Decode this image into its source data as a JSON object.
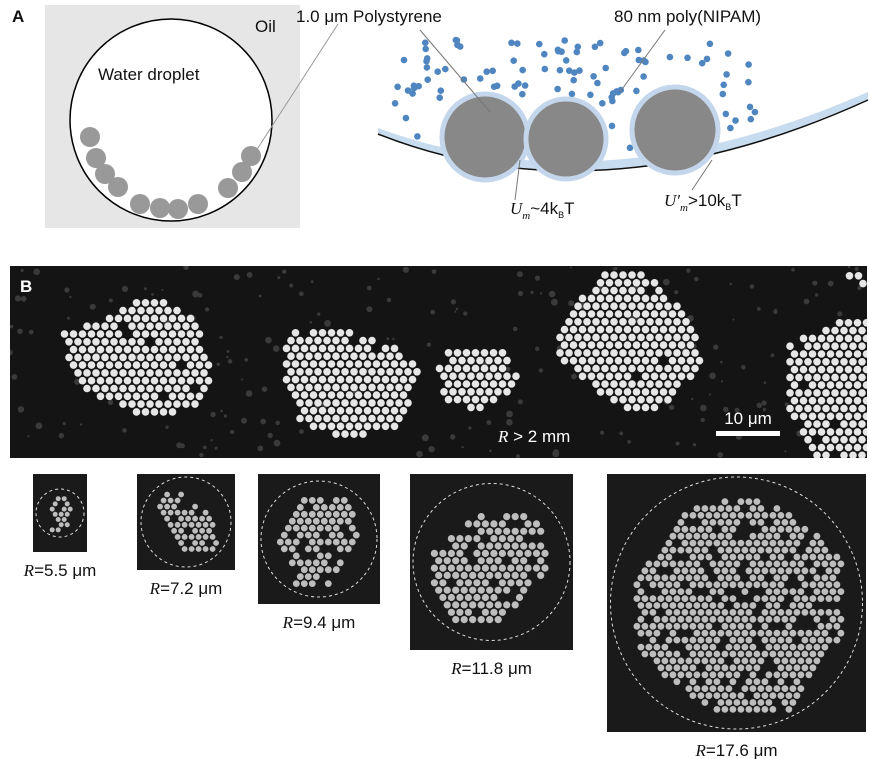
{
  "panel_a": {
    "label": "A",
    "oil": "Oil",
    "droplet": "Water droplet",
    "polystyrene": "1.0 μm Polystyrene",
    "nipam": "80 nm poly(NIPAM)",
    "potential_weak": {
      "symbol": "U",
      "sub": "m",
      "relation": "~4k",
      "sub2": "B",
      "end": "T"
    },
    "potential_strong": {
      "symbol": "U′",
      "sub": "m",
      "relation": ">10k",
      "sub2": "B",
      "end": "T"
    }
  },
  "panel_b": {
    "label": "B",
    "flat": {
      "symbol": "R",
      "text": " > 2 mm"
    },
    "scale_bar": "10 μm",
    "droplets": [
      {
        "symbol": "R",
        "text": "=5.5 μm"
      },
      {
        "symbol": "R",
        "text": "=7.2 μm"
      },
      {
        "symbol": "R",
        "text": "=9.4 μm"
      },
      {
        "symbol": "R",
        "text": "=11.8 μm"
      },
      {
        "symbol": "R",
        "text": "=17.6 μm"
      }
    ]
  }
}
